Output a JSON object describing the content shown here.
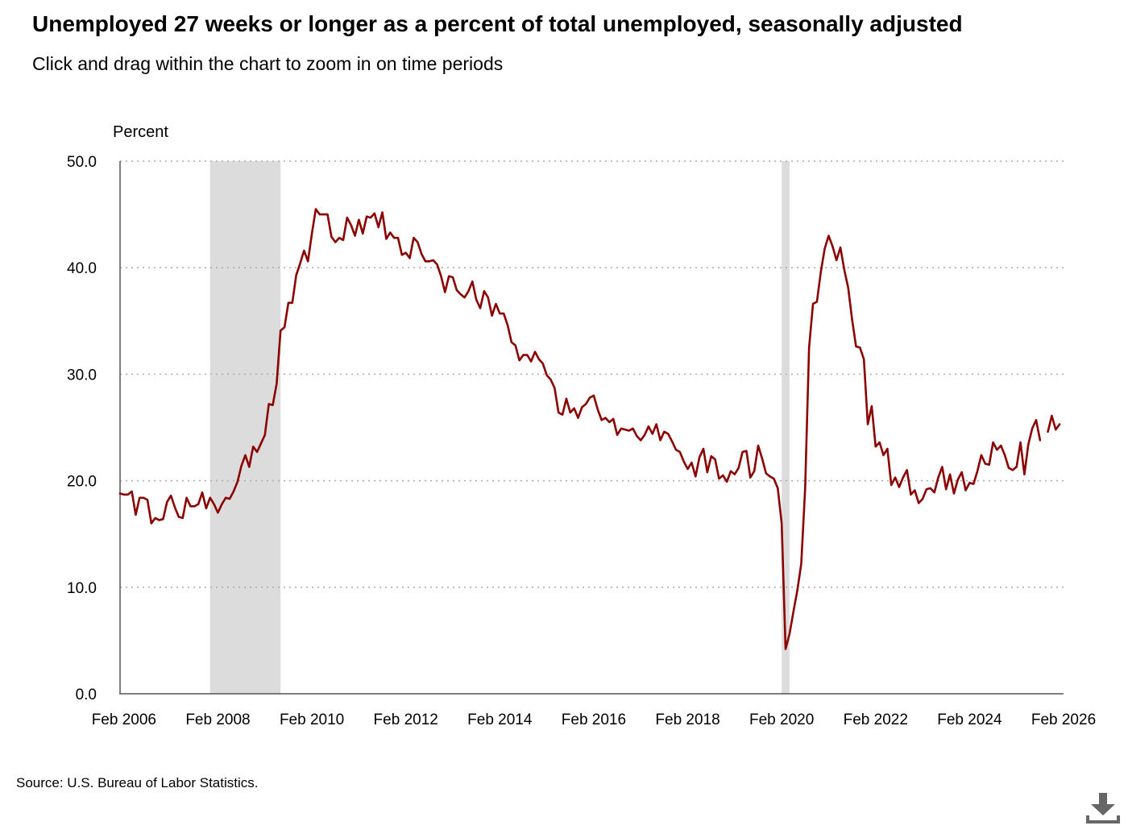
{
  "header": {
    "title": "Unemployed 27 weeks or longer as a percent of total unemployed, seasonally adjusted",
    "subtitle": "Click and drag within the chart to zoom in on time periods"
  },
  "footer": {
    "source": "Source: U.S. Bureau of Labor Statistics."
  },
  "icons": {
    "download": "download-icon"
  },
  "colors": {
    "line": "#8b0000",
    "recession": "#dcdcdc",
    "grid": "#aaaaaa",
    "axis": "#555555"
  },
  "chart_data": {
    "type": "line",
    "title": "Unemployed 27 weeks or longer as a percent of total unemployed, seasonally adjusted",
    "ylabel": "Percent",
    "xlabel": "",
    "ylim": [
      0,
      50
    ],
    "xlim": [
      "2006-01",
      "2026-02"
    ],
    "y_ticks": [
      "0.0",
      "10.0",
      "20.0",
      "30.0",
      "40.0",
      "50.0"
    ],
    "x_ticks": [
      {
        "label": "Feb 2006",
        "date": "2006-02"
      },
      {
        "label": "Feb 2008",
        "date": "2008-02"
      },
      {
        "label": "Feb 2010",
        "date": "2010-02"
      },
      {
        "label": "Feb 2012",
        "date": "2012-02"
      },
      {
        "label": "Feb 2014",
        "date": "2014-02"
      },
      {
        "label": "Feb 2016",
        "date": "2016-02"
      },
      {
        "label": "Feb 2018",
        "date": "2018-02"
      },
      {
        "label": "Feb 2020",
        "date": "2020-02"
      },
      {
        "label": "Feb 2022",
        "date": "2022-02"
      },
      {
        "label": "Feb 2024",
        "date": "2024-02"
      },
      {
        "label": "Feb 2026",
        "date": "2026-02"
      }
    ],
    "grid": "horizontal-dotted",
    "legend": "none",
    "recessions": [
      {
        "start": "2007-12",
        "end": "2009-06"
      },
      {
        "start": "2020-02",
        "end": "2020-04"
      }
    ],
    "series": [
      {
        "values": [
          [
            "2006-01",
            18.8
          ],
          [
            "2006-02",
            18.7
          ],
          [
            "2006-03",
            18.7
          ],
          [
            "2006-04",
            19.0
          ],
          [
            "2006-05",
            16.8
          ],
          [
            "2006-06",
            18.4
          ],
          [
            "2006-07",
            18.4
          ],
          [
            "2006-08",
            18.2
          ],
          [
            "2006-09",
            16.0
          ],
          [
            "2006-10",
            16.5
          ],
          [
            "2006-11",
            16.3
          ],
          [
            "2006-12",
            16.4
          ],
          [
            "2007-01",
            18.0
          ],
          [
            "2007-02",
            18.6
          ],
          [
            "2007-03",
            17.5
          ],
          [
            "2007-04",
            16.6
          ],
          [
            "2007-05",
            16.5
          ],
          [
            "2007-06",
            18.4
          ],
          [
            "2007-07",
            17.6
          ],
          [
            "2007-08",
            17.6
          ],
          [
            "2007-09",
            17.8
          ],
          [
            "2007-10",
            18.9
          ],
          [
            "2007-11",
            17.4
          ],
          [
            "2007-12",
            18.4
          ],
          [
            "2008-01",
            17.8
          ],
          [
            "2008-02",
            17.0
          ],
          [
            "2008-03",
            17.8
          ],
          [
            "2008-04",
            18.4
          ],
          [
            "2008-05",
            18.3
          ],
          [
            "2008-06",
            19.0
          ],
          [
            "2008-07",
            19.9
          ],
          [
            "2008-08",
            21.4
          ],
          [
            "2008-09",
            22.4
          ],
          [
            "2008-10",
            21.3
          ],
          [
            "2008-11",
            23.2
          ],
          [
            "2008-12",
            22.7
          ],
          [
            "2009-01",
            23.5
          ],
          [
            "2009-02",
            24.3
          ],
          [
            "2009-03",
            27.2
          ],
          [
            "2009-04",
            27.1
          ],
          [
            "2009-05",
            29.1
          ],
          [
            "2009-06",
            34.1
          ],
          [
            "2009-07",
            34.4
          ],
          [
            "2009-08",
            36.7
          ],
          [
            "2009-09",
            36.7
          ],
          [
            "2009-10",
            39.3
          ],
          [
            "2009-11",
            40.4
          ],
          [
            "2009-12",
            41.6
          ],
          [
            "2010-01",
            40.6
          ],
          [
            "2010-02",
            43.2
          ],
          [
            "2010-03",
            45.5
          ],
          [
            "2010-04",
            45.0
          ],
          [
            "2010-05",
            45.0
          ],
          [
            "2010-06",
            45.0
          ],
          [
            "2010-07",
            42.9
          ],
          [
            "2010-08",
            42.4
          ],
          [
            "2010-09",
            42.8
          ],
          [
            "2010-10",
            42.6
          ],
          [
            "2010-11",
            44.7
          ],
          [
            "2010-12",
            44.0
          ],
          [
            "2011-01",
            43.0
          ],
          [
            "2011-02",
            44.5
          ],
          [
            "2011-03",
            43.2
          ],
          [
            "2011-04",
            44.8
          ],
          [
            "2011-05",
            44.7
          ],
          [
            "2011-06",
            45.1
          ],
          [
            "2011-07",
            43.8
          ],
          [
            "2011-08",
            45.2
          ],
          [
            "2011-09",
            42.7
          ],
          [
            "2011-10",
            43.3
          ],
          [
            "2011-11",
            42.8
          ],
          [
            "2011-12",
            42.8
          ],
          [
            "2012-01",
            41.2
          ],
          [
            "2012-02",
            41.4
          ],
          [
            "2012-03",
            40.9
          ],
          [
            "2012-04",
            42.8
          ],
          [
            "2012-05",
            42.4
          ],
          [
            "2012-06",
            41.3
          ],
          [
            "2012-07",
            40.6
          ],
          [
            "2012-08",
            40.6
          ],
          [
            "2012-09",
            40.7
          ],
          [
            "2012-10",
            40.3
          ],
          [
            "2012-11",
            39.2
          ],
          [
            "2012-12",
            37.7
          ],
          [
            "2013-01",
            39.2
          ],
          [
            "2013-02",
            39.1
          ],
          [
            "2013-03",
            37.9
          ],
          [
            "2013-04",
            37.5
          ],
          [
            "2013-05",
            37.2
          ],
          [
            "2013-06",
            37.8
          ],
          [
            "2013-07",
            38.7
          ],
          [
            "2013-08",
            37.0
          ],
          [
            "2013-09",
            36.2
          ],
          [
            "2013-10",
            37.8
          ],
          [
            "2013-11",
            37.2
          ],
          [
            "2013-12",
            35.5
          ],
          [
            "2014-01",
            36.6
          ],
          [
            "2014-02",
            35.7
          ],
          [
            "2014-03",
            35.7
          ],
          [
            "2014-04",
            34.6
          ],
          [
            "2014-05",
            33.0
          ],
          [
            "2014-06",
            32.7
          ],
          [
            "2014-07",
            31.3
          ],
          [
            "2014-08",
            31.8
          ],
          [
            "2014-09",
            31.8
          ],
          [
            "2014-10",
            31.2
          ],
          [
            "2014-11",
            32.1
          ],
          [
            "2014-12",
            31.4
          ],
          [
            "2015-01",
            31.0
          ],
          [
            "2015-02",
            29.9
          ],
          [
            "2015-03",
            29.5
          ],
          [
            "2015-04",
            28.7
          ],
          [
            "2015-05",
            26.4
          ],
          [
            "2015-06",
            26.2
          ],
          [
            "2015-07",
            27.7
          ],
          [
            "2015-08",
            26.4
          ],
          [
            "2015-09",
            26.8
          ],
          [
            "2015-10",
            25.9
          ],
          [
            "2015-11",
            26.9
          ],
          [
            "2015-12",
            27.2
          ],
          [
            "2016-01",
            27.8
          ],
          [
            "2016-02",
            28.0
          ],
          [
            "2016-03",
            26.7
          ],
          [
            "2016-04",
            25.7
          ],
          [
            "2016-05",
            25.9
          ],
          [
            "2016-06",
            25.5
          ],
          [
            "2016-07",
            25.8
          ],
          [
            "2016-08",
            24.3
          ],
          [
            "2016-09",
            24.9
          ],
          [
            "2016-10",
            24.8
          ],
          [
            "2016-11",
            24.7
          ],
          [
            "2016-12",
            24.9
          ],
          [
            "2017-01",
            24.2
          ],
          [
            "2017-02",
            23.8
          ],
          [
            "2017-03",
            24.3
          ],
          [
            "2017-04",
            25.1
          ],
          [
            "2017-05",
            24.4
          ],
          [
            "2017-06",
            25.3
          ],
          [
            "2017-07",
            23.8
          ],
          [
            "2017-08",
            24.6
          ],
          [
            "2017-09",
            24.4
          ],
          [
            "2017-10",
            23.7
          ],
          [
            "2017-11",
            22.9
          ],
          [
            "2017-12",
            22.7
          ],
          [
            "2018-01",
            21.8
          ],
          [
            "2018-02",
            21.1
          ],
          [
            "2018-03",
            21.7
          ],
          [
            "2018-04",
            20.4
          ],
          [
            "2018-05",
            22.2
          ],
          [
            "2018-06",
            23.0
          ],
          [
            "2018-07",
            20.8
          ],
          [
            "2018-08",
            22.3
          ],
          [
            "2018-09",
            22.0
          ],
          [
            "2018-10",
            20.2
          ],
          [
            "2018-11",
            20.5
          ],
          [
            "2018-12",
            19.9
          ],
          [
            "2019-01",
            20.9
          ],
          [
            "2019-02",
            20.6
          ],
          [
            "2019-03",
            21.2
          ],
          [
            "2019-04",
            22.7
          ],
          [
            "2019-05",
            22.8
          ],
          [
            "2019-06",
            20.3
          ],
          [
            "2019-07",
            20.9
          ],
          [
            "2019-08",
            23.3
          ],
          [
            "2019-09",
            22.1
          ],
          [
            "2019-10",
            20.7
          ],
          [
            "2019-11",
            20.4
          ],
          [
            "2019-12",
            20.2
          ],
          [
            "2020-01",
            19.3
          ],
          [
            "2020-02",
            16.0
          ],
          [
            "2020-03",
            4.2
          ],
          [
            "2020-04",
            5.6
          ],
          [
            "2020-05",
            7.7
          ],
          [
            "2020-06",
            9.7
          ],
          [
            "2020-07",
            12.2
          ],
          [
            "2020-08",
            19.3
          ],
          [
            "2020-09",
            32.5
          ],
          [
            "2020-10",
            36.6
          ],
          [
            "2020-11",
            36.8
          ],
          [
            "2020-12",
            39.6
          ],
          [
            "2021-01",
            41.8
          ],
          [
            "2021-02",
            43.0
          ],
          [
            "2021-03",
            42.0
          ],
          [
            "2021-04",
            40.7
          ],
          [
            "2021-05",
            41.9
          ],
          [
            "2021-06",
            39.8
          ],
          [
            "2021-07",
            38.1
          ],
          [
            "2021-08",
            35.1
          ],
          [
            "2021-09",
            32.6
          ],
          [
            "2021-10",
            32.5
          ],
          [
            "2021-11",
            31.4
          ],
          [
            "2021-12",
            25.3
          ],
          [
            "2022-01",
            27.0
          ],
          [
            "2022-02",
            23.2
          ],
          [
            "2022-03",
            23.6
          ],
          [
            "2022-04",
            22.4
          ],
          [
            "2022-05",
            23.0
          ],
          [
            "2022-06",
            19.6
          ],
          [
            "2022-07",
            20.3
          ],
          [
            "2022-08",
            19.4
          ],
          [
            "2022-09",
            20.3
          ],
          [
            "2022-10",
            21.0
          ],
          [
            "2022-11",
            18.7
          ],
          [
            "2022-12",
            19.1
          ],
          [
            "2023-01",
            17.9
          ],
          [
            "2023-02",
            18.3
          ],
          [
            "2023-03",
            19.2
          ],
          [
            "2023-04",
            19.3
          ],
          [
            "2023-05",
            18.9
          ],
          [
            "2023-06",
            20.3
          ],
          [
            "2023-07",
            21.3
          ],
          [
            "2023-08",
            19.2
          ],
          [
            "2023-09",
            20.6
          ],
          [
            "2023-10",
            18.8
          ],
          [
            "2023-11",
            20.1
          ],
          [
            "2023-12",
            20.8
          ],
          [
            "2024-01",
            19.1
          ],
          [
            "2024-02",
            19.8
          ],
          [
            "2024-03",
            19.7
          ],
          [
            "2024-04",
            20.9
          ],
          [
            "2024-05",
            22.4
          ],
          [
            "2024-06",
            21.6
          ],
          [
            "2024-07",
            21.5
          ],
          [
            "2024-08",
            23.6
          ],
          [
            "2024-09",
            22.9
          ],
          [
            "2024-10",
            23.3
          ],
          [
            "2024-11",
            22.4
          ],
          [
            "2024-12",
            21.2
          ],
          [
            "2025-01",
            21.0
          ],
          [
            "2025-02",
            21.3
          ],
          [
            "2025-03",
            23.6
          ],
          [
            "2025-04",
            20.6
          ],
          [
            "2025-05",
            23.4
          ],
          [
            "2025-06",
            24.9
          ],
          [
            "2025-07",
            25.7
          ],
          [
            "2025-08",
            23.8
          ],
          [
            "2025-09",
            null
          ],
          [
            "2025-10",
            24.6
          ],
          [
            "2025-11",
            26.1
          ],
          [
            "2025-12",
            24.8
          ],
          [
            "2026-01",
            25.3
          ]
        ]
      }
    ]
  }
}
